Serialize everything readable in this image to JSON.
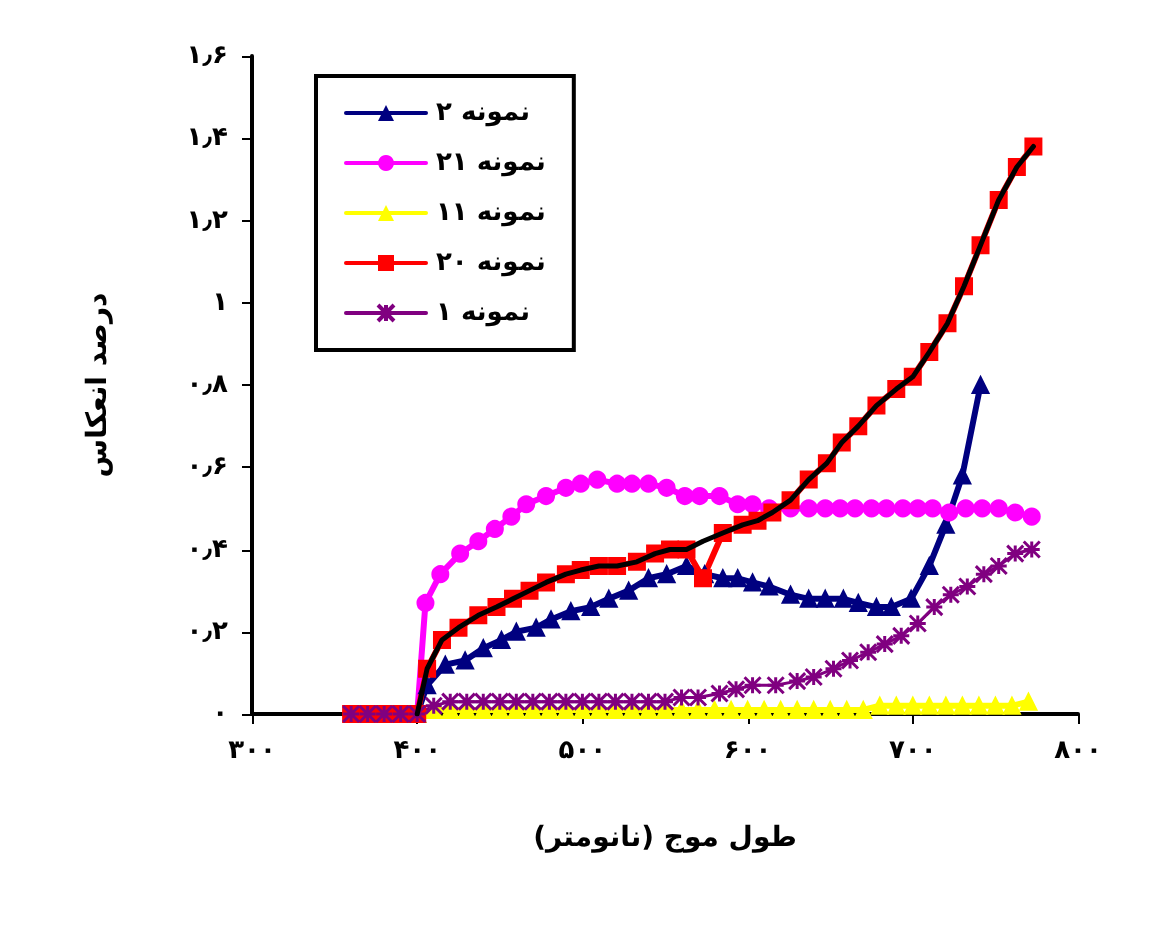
{
  "chart_data": {
    "type": "line",
    "xlabel": "طول موج (نانومتر)",
    "ylabel": "درصد انعکاس",
    "xlim": [
      300,
      800
    ],
    "ylim": [
      0,
      1.6
    ],
    "xticks": [
      {
        "value": 300,
        "label": "۳۰۰"
      },
      {
        "value": 400,
        "label": "۴۰۰"
      },
      {
        "value": 500,
        "label": "۵۰۰"
      },
      {
        "value": 600,
        "label": "۶۰۰"
      },
      {
        "value": 700,
        "label": "۷۰۰"
      },
      {
        "value": 800,
        "label": "۸۰۰"
      }
    ],
    "yticks": [
      {
        "value": 0,
        "label": "۰"
      },
      {
        "value": 0.2,
        "label": "۰٫۲"
      },
      {
        "value": 0.4,
        "label": "۰٫۴"
      },
      {
        "value": 0.6,
        "label": "۰٫۶"
      },
      {
        "value": 0.8,
        "label": "۰٫۸"
      },
      {
        "value": 1,
        "label": "۱"
      },
      {
        "value": 1.2,
        "label": "۱٫۲"
      },
      {
        "value": 1.4,
        "label": "۱٫۴"
      },
      {
        "value": 1.6,
        "label": "۱٫۶"
      }
    ],
    "grid": false,
    "legend": "top left",
    "line_style": "solid",
    "series": [
      {
        "name": "نمونه ۲",
        "color": "#000080",
        "marker": "triangle",
        "x": [
          400,
          406,
          417,
          429,
          440,
          451,
          460,
          472,
          481,
          493,
          505,
          516,
          528,
          540,
          551,
          563,
          574,
          585,
          594,
          603,
          613,
          626,
          637,
          647,
          658,
          667,
          678,
          687,
          699,
          710,
          720,
          730,
          741
        ],
        "values": [
          0,
          0.07,
          0.12,
          0.13,
          0.16,
          0.18,
          0.2,
          0.21,
          0.23,
          0.25,
          0.26,
          0.28,
          0.3,
          0.33,
          0.34,
          0.36,
          0.34,
          0.33,
          0.33,
          0.32,
          0.31,
          0.29,
          0.28,
          0.28,
          0.28,
          0.27,
          0.26,
          0.26,
          0.28,
          0.36,
          0.46,
          0.58,
          0.8
        ]
      },
      {
        "name": "نمونه ۲۱",
        "color": "#ff00ff",
        "marker": "circle",
        "x": [
          400,
          405,
          414,
          426,
          437,
          447,
          457,
          466,
          478,
          490,
          499,
          509,
          521,
          530,
          540,
          551,
          562,
          571,
          583,
          594,
          603,
          613,
          626,
          637,
          647,
          656,
          665,
          675,
          684,
          694,
          703,
          712,
          722,
          732,
          742,
          752,
          762,
          772
        ],
        "values": [
          0,
          0.27,
          0.34,
          0.39,
          0.42,
          0.45,
          0.48,
          0.51,
          0.53,
          0.55,
          0.56,
          0.57,
          0.56,
          0.56,
          0.56,
          0.55,
          0.53,
          0.53,
          0.53,
          0.51,
          0.51,
          0.5,
          0.5,
          0.5,
          0.5,
          0.5,
          0.5,
          0.5,
          0.5,
          0.5,
          0.5,
          0.5,
          0.49,
          0.5,
          0.5,
          0.5,
          0.49,
          0.48
        ]
      },
      {
        "name": "نمونه ۱۱",
        "color": "#ffff00",
        "marker": "triangle",
        "x": [
          400,
          410,
          420,
          430,
          440,
          450,
          460,
          470,
          480,
          490,
          500,
          510,
          520,
          530,
          540,
          550,
          560,
          570,
          580,
          590,
          600,
          610,
          620,
          630,
          640,
          650,
          660,
          670,
          680,
          690,
          700,
          710,
          720,
          730,
          740,
          750,
          760,
          770
        ],
        "values": [
          0,
          0.01,
          0.01,
          0.01,
          0.01,
          0.01,
          0.01,
          0.01,
          0.01,
          0.01,
          0.01,
          0.01,
          0.01,
          0.01,
          0.01,
          0.01,
          0.01,
          0.01,
          0.01,
          0.01,
          0.01,
          0.01,
          0.01,
          0.01,
          0.01,
          0.01,
          0.01,
          0.01,
          0.02,
          0.02,
          0.02,
          0.02,
          0.02,
          0.02,
          0.02,
          0.02,
          0.02,
          0.03
        ]
      },
      {
        "name": "نمونه ۲۰",
        "color": "#ff0000",
        "marker": "square",
        "x": [
          360,
          370,
          380,
          390,
          400,
          406,
          415,
          425,
          437,
          448,
          458,
          468,
          478,
          490,
          499,
          510,
          521,
          533,
          544,
          553,
          563,
          573,
          585,
          597,
          606,
          615,
          626,
          637,
          648,
          657,
          667,
          678,
          690,
          700,
          710,
          721,
          731,
          741,
          752,
          763,
          773
        ],
        "values": [
          0,
          0,
          0,
          0,
          0,
          0.11,
          0.18,
          0.21,
          0.24,
          0.26,
          0.28,
          0.3,
          0.32,
          0.34,
          0.35,
          0.36,
          0.36,
          0.37,
          0.39,
          0.4,
          0.4,
          0.33,
          0.44,
          0.46,
          0.47,
          0.49,
          0.52,
          0.57,
          0.61,
          0.66,
          0.7,
          0.75,
          0.79,
          0.82,
          0.88,
          0.95,
          1.04,
          1.14,
          1.25,
          1.33,
          1.38
        ]
      },
      {
        "color": "#000000",
        "marker": "none",
        "x": [
          400,
          406,
          415,
          425,
          437,
          448,
          458,
          468,
          478,
          490,
          499,
          510,
          521,
          533,
          544,
          553,
          563,
          573,
          585,
          597,
          606,
          615,
          626,
          637,
          648,
          657,
          667,
          678,
          690,
          700,
          710,
          721,
          731,
          741,
          752,
          763,
          773
        ],
        "values": [
          0,
          0.11,
          0.18,
          0.21,
          0.24,
          0.26,
          0.28,
          0.3,
          0.32,
          0.34,
          0.35,
          0.36,
          0.36,
          0.37,
          0.39,
          0.4,
          0.4,
          0.42,
          0.44,
          0.46,
          0.47,
          0.49,
          0.52,
          0.57,
          0.61,
          0.66,
          0.7,
          0.75,
          0.79,
          0.82,
          0.88,
          0.95,
          1.04,
          1.14,
          1.25,
          1.33,
          1.38
        ]
      },
      {
        "name": "نمونه ۱",
        "color": "#800080",
        "marker": "cross",
        "x": [
          360,
          370,
          380,
          390,
          400,
          410,
          420,
          430,
          440,
          450,
          460,
          470,
          480,
          490,
          500,
          510,
          520,
          530,
          540,
          550,
          560,
          570,
          583,
          593,
          603,
          617,
          630,
          640,
          652,
          662,
          673,
          683,
          693,
          703,
          713,
          723,
          733,
          743,
          752,
          762,
          772
        ],
        "values": [
          0,
          0,
          0,
          0,
          0,
          0.02,
          0.03,
          0.03,
          0.03,
          0.03,
          0.03,
          0.03,
          0.03,
          0.03,
          0.03,
          0.03,
          0.03,
          0.03,
          0.03,
          0.03,
          0.04,
          0.04,
          0.05,
          0.06,
          0.07,
          0.07,
          0.08,
          0.09,
          0.11,
          0.13,
          0.15,
          0.17,
          0.19,
          0.22,
          0.26,
          0.29,
          0.31,
          0.34,
          0.36,
          0.39,
          0.4
        ]
      }
    ]
  }
}
